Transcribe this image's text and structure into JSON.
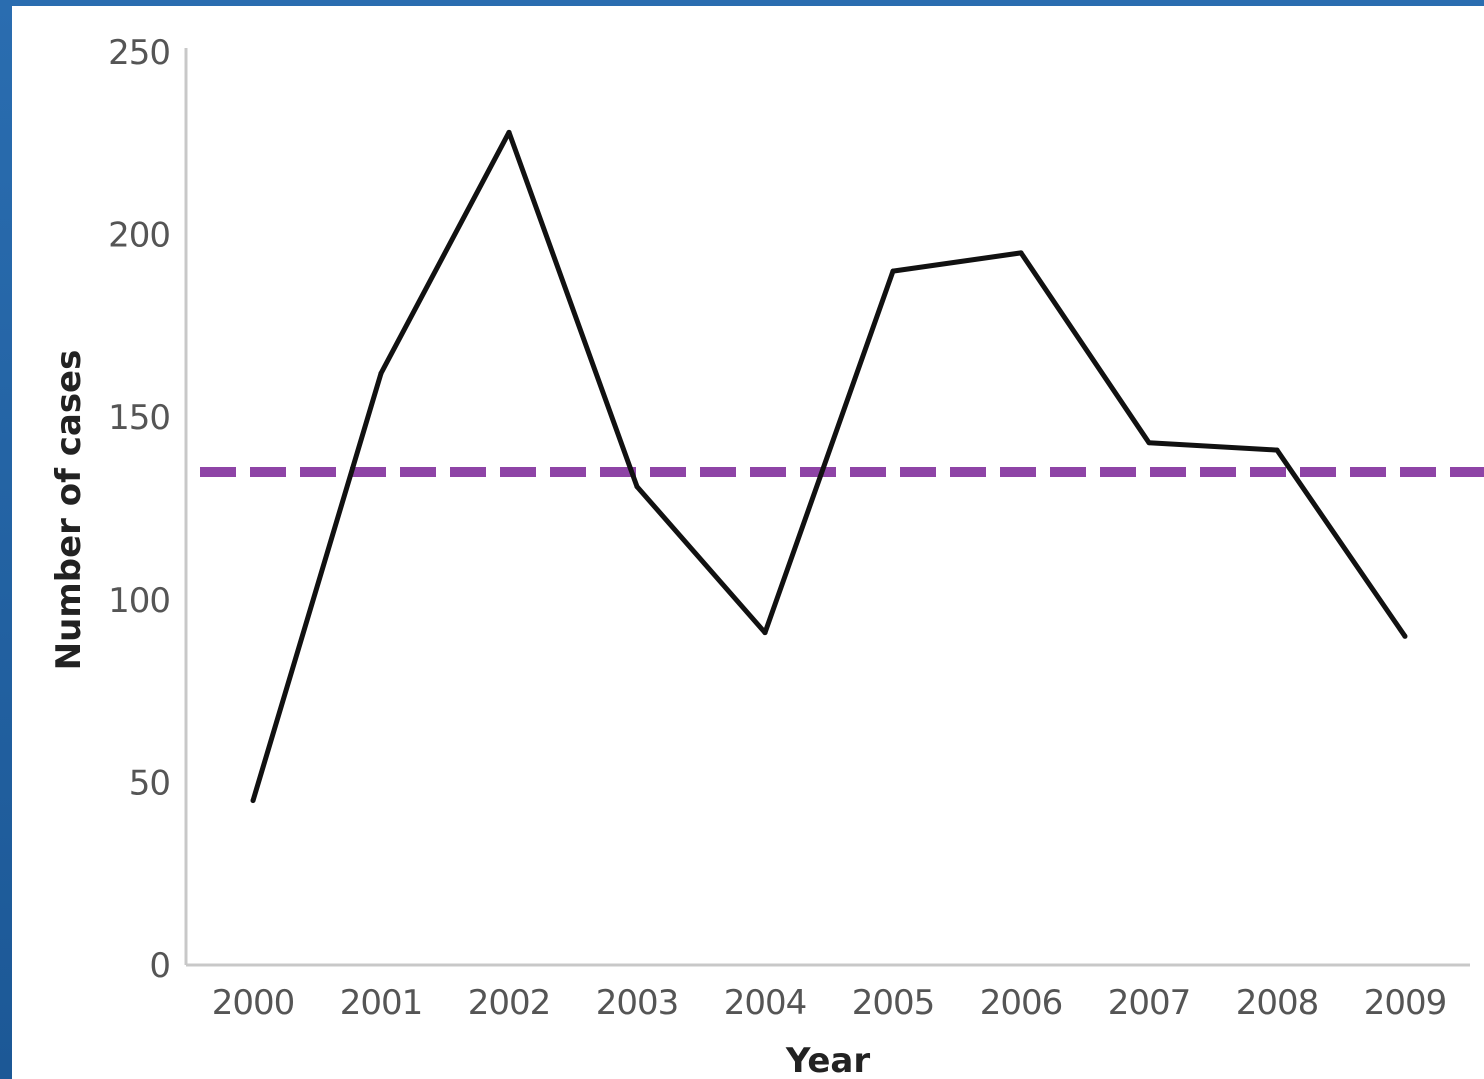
{
  "chart_data": {
    "type": "line",
    "title": "",
    "xlabel": "Year",
    "ylabel": "Number of cases",
    "categories": [
      "2000",
      "2001",
      "2002",
      "2003",
      "2004",
      "2005",
      "2006",
      "2007",
      "2008",
      "2009"
    ],
    "series": [
      {
        "values": [
          45,
          162,
          228,
          131,
          91,
          190,
          195,
          143,
          141,
          90
        ],
        "color": "#111111",
        "style": "solid"
      }
    ],
    "reference_line": {
      "value": 135,
      "color": "#8e44a6",
      "style": "dashed"
    },
    "ylim": [
      0,
      250
    ],
    "yticks": [
      "0",
      "50",
      "100",
      "150",
      "200",
      "250"
    ],
    "grid": false,
    "legend": "none"
  }
}
